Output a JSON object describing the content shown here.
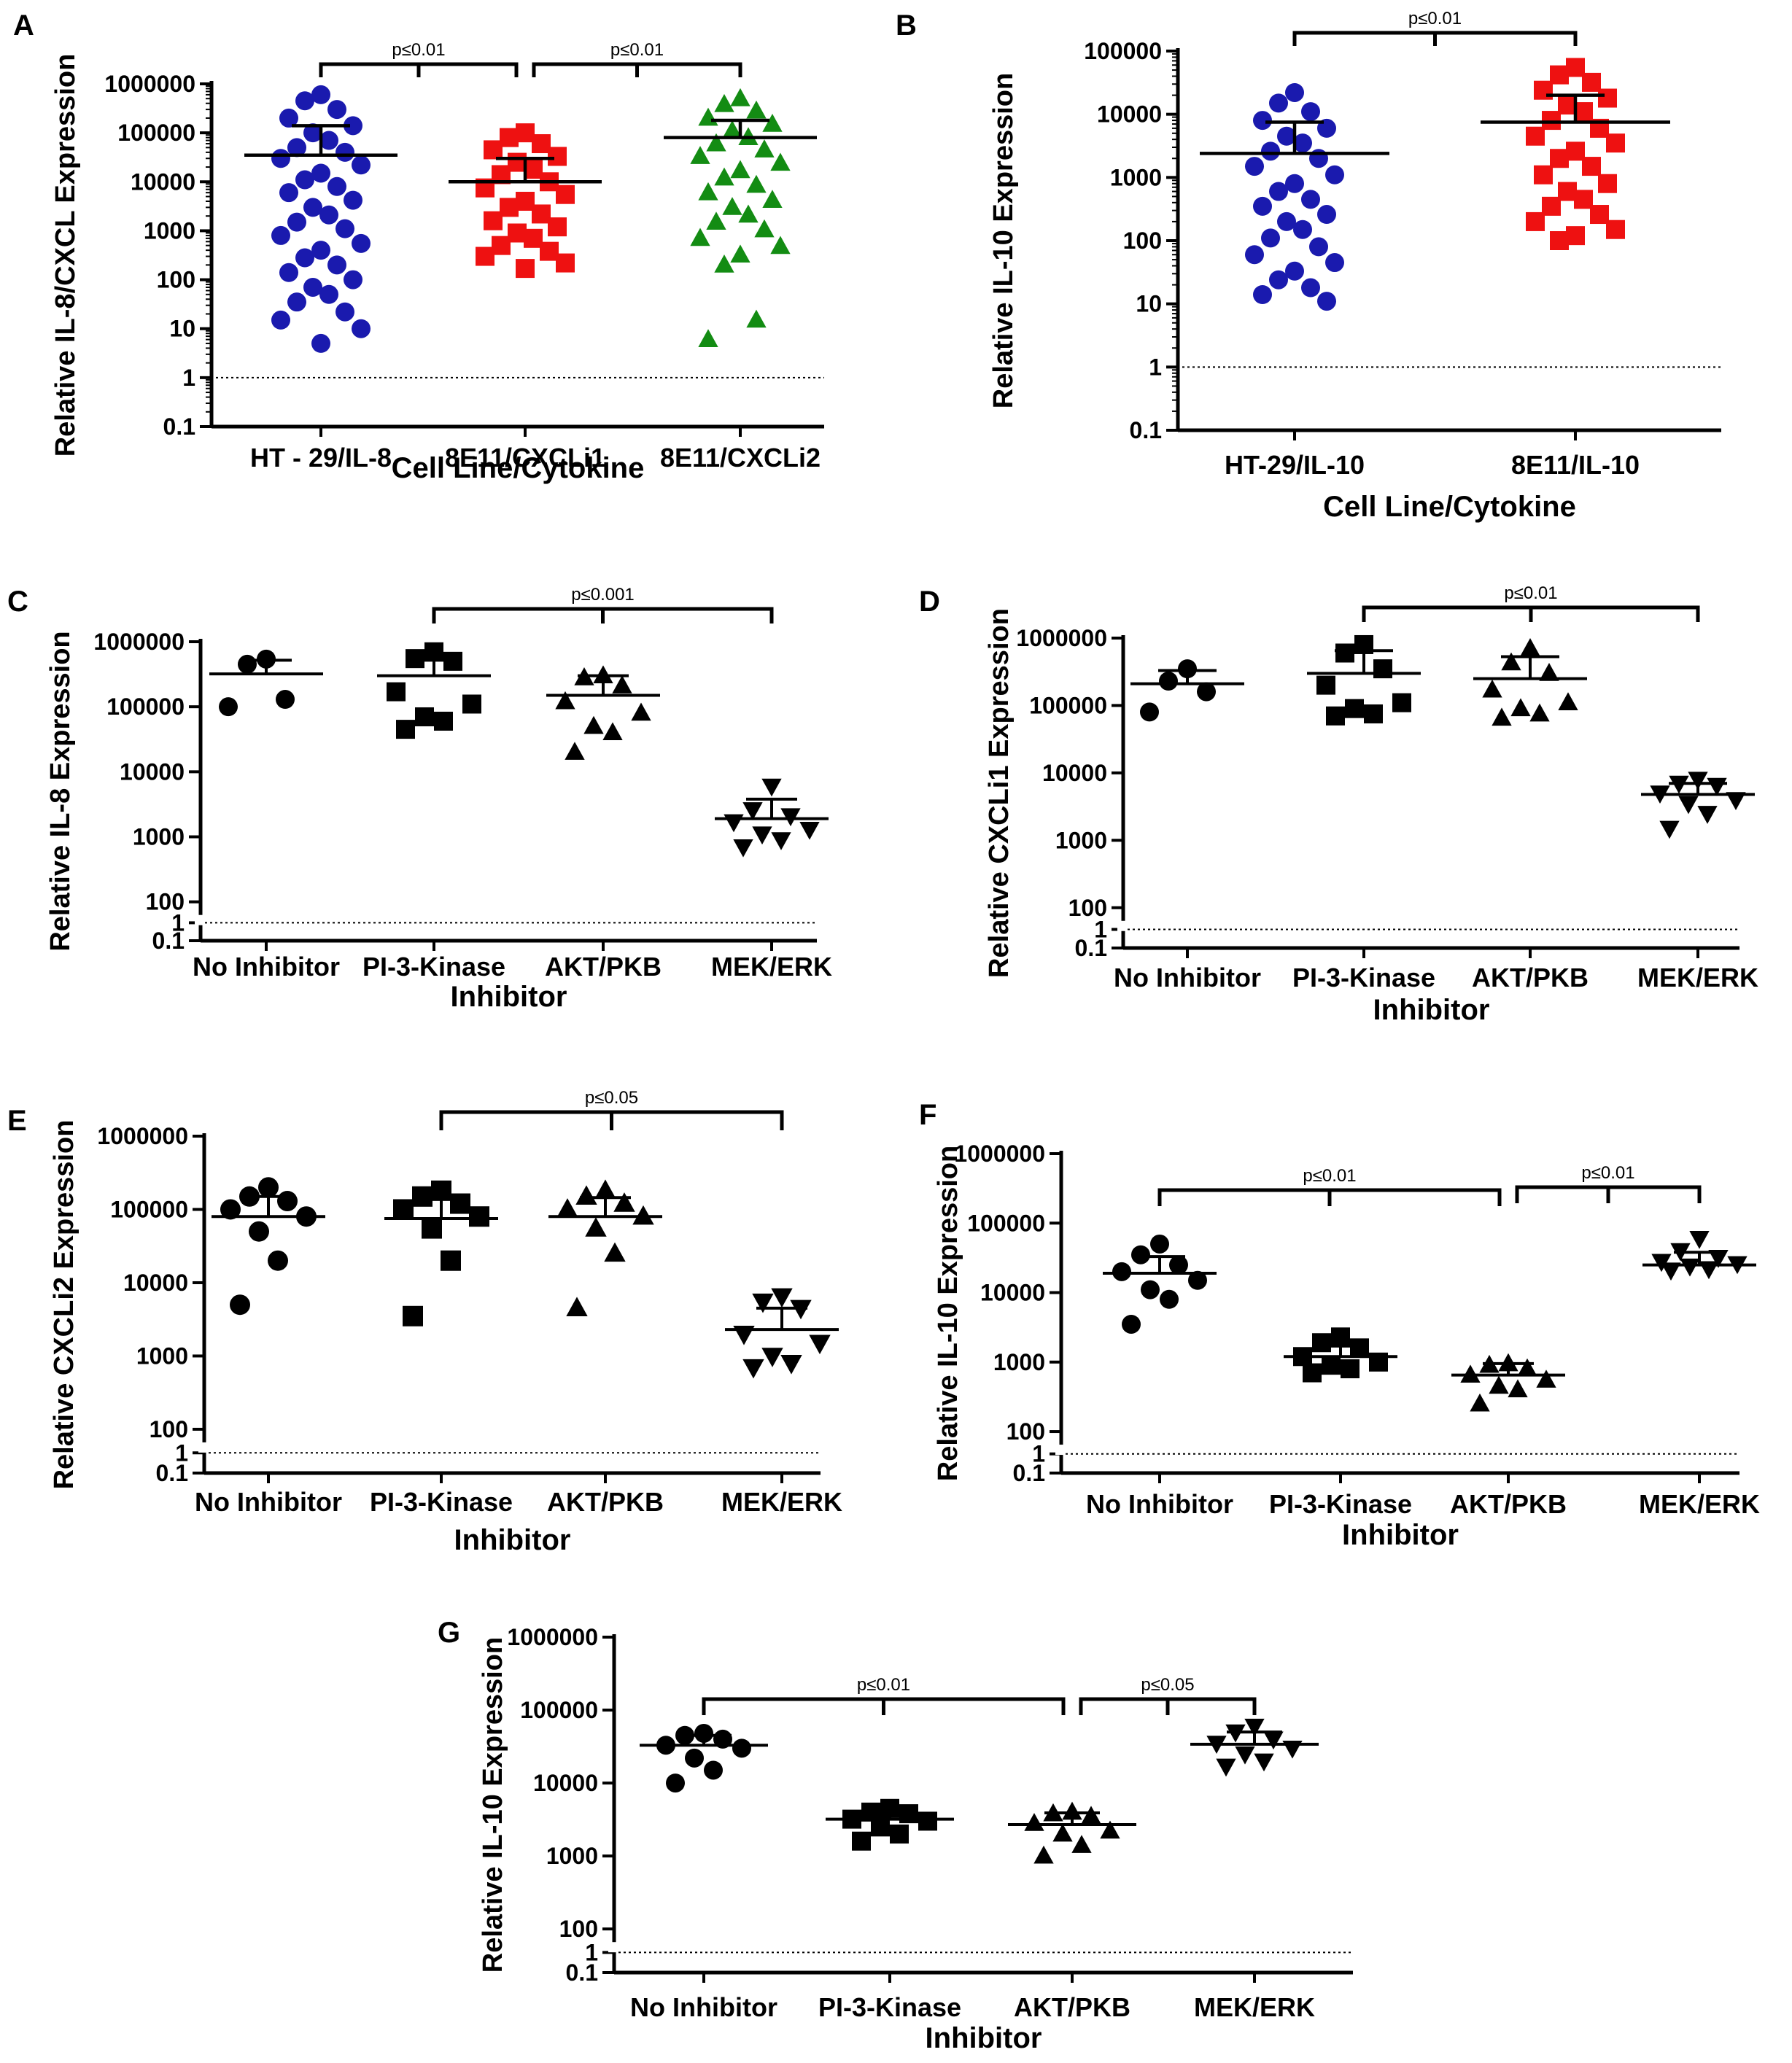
{
  "figure": {
    "chart_data": [
      {
        "type": "scatter",
        "panel_label": "A",
        "ylabel": "Relative IL-8/CXCL Expression",
        "xlabel": "Cell Line/Cytokine",
        "yscale": "log",
        "ylim": [
          0.1,
          1000000
        ],
        "ytick_labels": [
          "0.1",
          "1",
          "10",
          "100",
          "1000",
          "10000",
          "100000",
          "1000000"
        ],
        "reference_line": 1,
        "categories": [
          "HT - 29/IL-8",
          "8E11/CXCLi1",
          "8E11/CXCLi2"
        ],
        "markers": [
          "circle",
          "square",
          "triangle"
        ],
        "colors": [
          "#1a1aae",
          "#ee1111",
          "#138c13"
        ],
        "means": [
          35000,
          10000,
          80000
        ],
        "sd_upper": [
          140000,
          30000,
          180000
        ],
        "points": [
          [
            600000,
            450000,
            300000,
            200000,
            140000,
            100000,
            70000,
            50000,
            40000,
            30000,
            22000,
            15000,
            11000,
            8000,
            6000,
            4200,
            3000,
            2100,
            1500,
            1100,
            800,
            550,
            400,
            280,
            200,
            140,
            100,
            70,
            50,
            35,
            22,
            15,
            10,
            5
          ],
          [
            100000,
            80000,
            60000,
            45000,
            33000,
            25000,
            18000,
            14000,
            10000,
            7500,
            5500,
            4000,
            3000,
            2200,
            1600,
            1200,
            900,
            700,
            500,
            380,
            300,
            220,
            170
          ],
          [
            500000,
            380000,
            280000,
            200000,
            150000,
            110000,
            80000,
            60000,
            45000,
            33000,
            24000,
            17000,
            12000,
            8500,
            6000,
            4200,
            3000,
            2100,
            1500,
            1050,
            700,
            480,
            320,
            200,
            15,
            6
          ]
        ],
        "significance": [
          {
            "from": 0,
            "to": 1,
            "label": "p≤0.01"
          },
          {
            "from": 1,
            "to": 2,
            "label": "p≤0.01"
          }
        ]
      },
      {
        "type": "scatter",
        "panel_label": "B",
        "ylabel": "Relative IL-10 Expression",
        "xlabel": "Cell Line/Cytokine",
        "yscale": "log",
        "ylim": [
          0.1,
          100000
        ],
        "ytick_labels": [
          "0.1",
          "1",
          "10",
          "100",
          "1000",
          "10000",
          "100000"
        ],
        "reference_line": 1,
        "categories": [
          "HT-29/IL-10",
          "8E11/IL-10"
        ],
        "markers": [
          "circle",
          "square"
        ],
        "colors": [
          "#1a1aae",
          "#ee1111"
        ],
        "means": [
          2400,
          7500
        ],
        "sd_upper": [
          7500,
          20000
        ],
        "points": [
          [
            22000,
            15000,
            11000,
            8000,
            6000,
            4500,
            3500,
            2600,
            2000,
            1500,
            1100,
            800,
            600,
            450,
            350,
            260,
            200,
            150,
            110,
            80,
            60,
            45,
            33,
            24,
            18,
            14,
            11
          ],
          [
            55000,
            42000,
            32000,
            24000,
            18000,
            14000,
            11000,
            8000,
            6000,
            4500,
            3500,
            2600,
            2000,
            1500,
            1100,
            800,
            600,
            450,
            350,
            260,
            200,
            150,
            120,
            100
          ]
        ],
        "significance": [
          {
            "from": 0,
            "to": 1,
            "label": "p≤0.01"
          }
        ]
      },
      {
        "type": "scatter",
        "panel_label": "C",
        "ylabel": "Relative IL-8 Expression",
        "xlabel": "Inhibitor",
        "yscale": "log-broken",
        "ytick_labels": [
          "1000000",
          "100000",
          "10000",
          "1000",
          "100",
          "1",
          "0.1"
        ],
        "reference_line": 1,
        "categories": [
          "No Inhibitor",
          "PI-3-Kinase",
          "AKT/PKB",
          "MEK/ERK"
        ],
        "markers": [
          "circle",
          "square",
          "triangle",
          "triangle-down"
        ],
        "colors": [
          "#000000",
          "#000000",
          "#000000",
          "#000000"
        ],
        "means": [
          320000,
          300000,
          150000,
          1900
        ],
        "sd_upper": [
          520000,
          520000,
          300000,
          3800
        ],
        "points": [
          [
            540000,
            450000,
            130000,
            100000
          ],
          [
            700000,
            550000,
            500000,
            170000,
            110000,
            70000,
            60000,
            45000
          ],
          [
            300000,
            280000,
            210000,
            120000,
            80000,
            50000,
            40000,
            20000
          ],
          [
            6000,
            2600,
            2100,
            1700,
            1300,
            1100,
            900,
            700
          ]
        ],
        "significance": [
          {
            "from": 1,
            "to": 3,
            "label": "p≤0.001"
          }
        ]
      },
      {
        "type": "scatter",
        "panel_label": "D",
        "ylabel": "Relative CXCLi1 Expression",
        "xlabel": "Inhibitor",
        "yscale": "log-broken",
        "ytick_labels": [
          "1000000",
          "100000",
          "10000",
          "1000",
          "100",
          "1",
          "0.1"
        ],
        "reference_line": 1,
        "categories": [
          "No Inhibitor",
          "PI-3-Kinase",
          "AKT/PKB",
          "MEK/ERK"
        ],
        "markers": [
          "circle",
          "square",
          "triangle",
          "triangle-down"
        ],
        "colors": [
          "#000000",
          "#000000",
          "#000000",
          "#000000"
        ],
        "means": [
          210000,
          300000,
          250000,
          4800
        ],
        "sd_upper": [
          330000,
          650000,
          530000,
          7000
        ],
        "points": [
          [
            350000,
            230000,
            160000,
            80000
          ],
          [
            800000,
            600000,
            350000,
            200000,
            110000,
            90000,
            75000,
            70000
          ],
          [
            700000,
            430000,
            300000,
            170000,
            110000,
            90000,
            75000,
            65000
          ],
          [
            8000,
            7000,
            6500,
            5000,
            4000,
            3500,
            2500,
            1500
          ]
        ],
        "significance": [
          {
            "from": 1,
            "to": 3,
            "label": "p≤0.01"
          }
        ]
      },
      {
        "type": "scatter",
        "panel_label": "E",
        "ylabel": "Relative CXCLi2 Expression",
        "xlabel": "Inhibitor",
        "yscale": "log-broken",
        "ytick_labels": [
          "1000000",
          "100000",
          "10000",
          "1000",
          "100",
          "1",
          "0.1"
        ],
        "reference_line": 1,
        "categories": [
          "No Inhibitor",
          "PI-3-Kinase",
          "AKT/PKB",
          "MEK/ERK"
        ],
        "markers": [
          "circle",
          "square",
          "triangle",
          "triangle-down"
        ],
        "colors": [
          "#000000",
          "#000000",
          "#000000",
          "#000000"
        ],
        "means": [
          80000,
          75000,
          80000,
          2300
        ],
        "sd_upper": [
          150000,
          140000,
          145000,
          4500
        ],
        "points": [
          [
            200000,
            150000,
            130000,
            100000,
            80000,
            50000,
            20000,
            5000
          ],
          [
            180000,
            150000,
            120000,
            100000,
            80000,
            55000,
            20000,
            3500
          ],
          [
            180000,
            150000,
            120000,
            100000,
            80000,
            55000,
            25000,
            4500
          ],
          [
            6500,
            5500,
            4500,
            2000,
            1500,
            1000,
            800,
            700
          ]
        ],
        "significance": [
          {
            "from": 1,
            "to": 3,
            "label": "p≤0.05"
          }
        ]
      },
      {
        "type": "scatter",
        "panel_label": "F",
        "ylabel": "Relative IL-10 Expression",
        "xlabel": "Inhibitor",
        "yscale": "log-broken",
        "ytick_labels": [
          "1000000",
          "100000",
          "10000",
          "1000",
          "100",
          "1",
          "0.1"
        ],
        "reference_line": 1,
        "categories": [
          "No Inhibitor",
          "PI-3-Kinase",
          "AKT/PKB",
          "MEK/ERK"
        ],
        "markers": [
          "circle",
          "square",
          "triangle",
          "triangle-down"
        ],
        "colors": [
          "#000000",
          "#000000",
          "#000000",
          "#000000"
        ],
        "means": [
          19000,
          1200,
          650,
          25000
        ],
        "sd_upper": [
          33000,
          1700,
          950,
          38000
        ],
        "points": [
          [
            50000,
            35000,
            25000,
            20000,
            15000,
            11000,
            8000,
            3500
          ],
          [
            2300,
            1900,
            1600,
            1200,
            1000,
            900,
            800,
            700
          ],
          [
            950,
            900,
            800,
            650,
            550,
            450,
            400,
            250
          ],
          [
            60000,
            40000,
            32000,
            28000,
            26000,
            24000,
            22000,
            21000
          ]
        ],
        "significance": [
          {
            "from": 0,
            "to": 2,
            "label": "p≤0.01"
          },
          {
            "from": 2,
            "to": 3,
            "label": "p≤0.01"
          }
        ]
      },
      {
        "type": "scatter",
        "panel_label": "G",
        "ylabel": "Relative IL-10 Expression",
        "xlabel": "Inhibitor",
        "yscale": "log-broken",
        "ytick_labels": [
          "1000000",
          "100000",
          "10000",
          "1000",
          "100",
          "1",
          "0.1"
        ],
        "reference_line": 1,
        "categories": [
          "No Inhibitor",
          "PI-3-Kinase",
          "AKT/PKB",
          "MEK/ERK"
        ],
        "markers": [
          "circle",
          "square",
          "triangle",
          "triangle-down"
        ],
        "colors": [
          "#000000",
          "#000000",
          "#000000",
          "#000000"
        ],
        "means": [
          33000,
          3200,
          2700,
          34000
        ],
        "sd_upper": [
          45000,
          3900,
          3900,
          50000
        ],
        "points": [
          [
            48000,
            45000,
            40000,
            33000,
            30000,
            22000,
            15000,
            10000
          ],
          [
            4500,
            4000,
            3800,
            3200,
            3000,
            2500,
            2000,
            1600
          ],
          [
            4000,
            3800,
            3500,
            2800,
            2200,
            2000,
            1400,
            1000
          ],
          [
            60000,
            50000,
            40000,
            35000,
            30000,
            25000,
            20000,
            17000
          ]
        ],
        "significance": [
          {
            "from": 0,
            "to": 2,
            "label": "p≤0.01"
          },
          {
            "from": 2,
            "to": 3,
            "label": "p≤0.05"
          }
        ]
      }
    ]
  }
}
